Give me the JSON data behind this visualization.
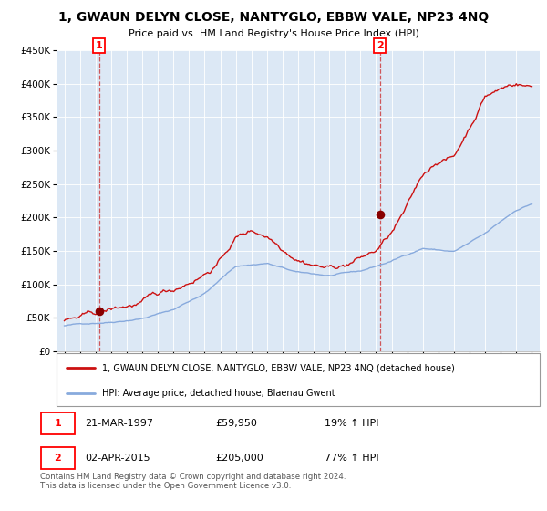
{
  "title": "1, GWAUN DELYN CLOSE, NANTYGLO, EBBW VALE, NP23 4NQ",
  "subtitle": "Price paid vs. HM Land Registry's House Price Index (HPI)",
  "red_line_label": "1, GWAUN DELYN CLOSE, NANTYGLO, EBBW VALE, NP23 4NQ (detached house)",
  "blue_line_label": "HPI: Average price, detached house, Blaenau Gwent",
  "sale1_date": "21-MAR-1997",
  "sale1_price": 59950,
  "sale1_hpi": "19% ↑ HPI",
  "sale1_year": 1997.22,
  "sale2_date": "02-APR-2015",
  "sale2_price": 205000,
  "sale2_hpi": "77% ↑ HPI",
  "sale2_year": 2015.25,
  "footer": "Contains HM Land Registry data © Crown copyright and database right 2024.\nThis data is licensed under the Open Government Licence v3.0.",
  "ylim": [
    0,
    450000
  ],
  "xlim": [
    1994.5,
    2025.5
  ],
  "plot_bg": "#dce8f5"
}
